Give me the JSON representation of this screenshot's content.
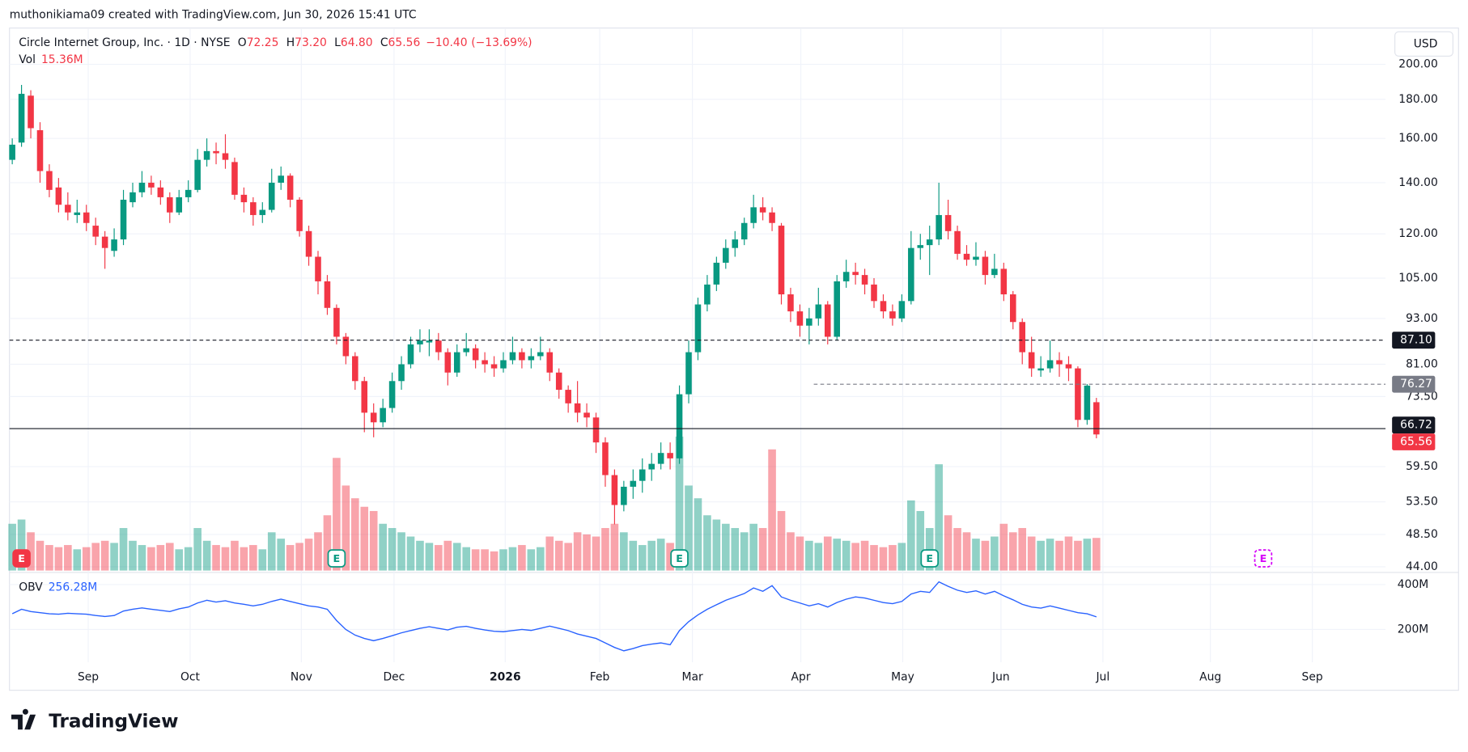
{
  "header": {
    "attribution": "muthonikiama09 created with TradingView.com, Jun 30, 2026 15:41 UTC"
  },
  "currency": "USD",
  "footer": {
    "brand": "TradingView"
  },
  "chart_data": {
    "type": "candlestick",
    "legend": {
      "symbol": "Circle Internet Group, Inc. · 1D · NYSE",
      "ohlc": [
        {
          "key": "O",
          "value": 72.25,
          "label": "72.25"
        },
        {
          "key": "H",
          "value": 73.2,
          "label": "73.20"
        },
        {
          "key": "L",
          "value": 64.8,
          "label": "64.80"
        },
        {
          "key": "C",
          "value": 65.56,
          "label": "65.56"
        }
      ],
      "change": {
        "value": -10.4,
        "label": "−10.40"
      },
      "change_pct": {
        "value": -13.69,
        "label": "(−13.69%)"
      }
    },
    "ohlc": [
      [
        150,
        160,
        148,
        157
      ],
      [
        158,
        188,
        156,
        183
      ],
      [
        182,
        185,
        160,
        165
      ],
      [
        164,
        168,
        140,
        145
      ],
      [
        145,
        148,
        134,
        137
      ],
      [
        138,
        142,
        128,
        131
      ],
      [
        131,
        136,
        125,
        128
      ],
      [
        127,
        133,
        124,
        128
      ],
      [
        128,
        131,
        121,
        124
      ],
      [
        123,
        126,
        116,
        119
      ],
      [
        119,
        121,
        108,
        115
      ],
      [
        114,
        122,
        112,
        118
      ],
      [
        118,
        137,
        116,
        133
      ],
      [
        132,
        140,
        130,
        136
      ],
      [
        136,
        145,
        134,
        140
      ],
      [
        140,
        143,
        135,
        138
      ],
      [
        138,
        141,
        131,
        134
      ],
      [
        134,
        136,
        124,
        128
      ],
      [
        128,
        137,
        127,
        134
      ],
      [
        134,
        141,
        132,
        137
      ],
      [
        137,
        155,
        136,
        150
      ],
      [
        150,
        160,
        147,
        154
      ],
      [
        154,
        158,
        148,
        153
      ],
      [
        153,
        162,
        146,
        150
      ],
      [
        149,
        151,
        133,
        135
      ],
      [
        135,
        138,
        128,
        132
      ],
      [
        132,
        134,
        123,
        127
      ],
      [
        127,
        132,
        124,
        129
      ],
      [
        129,
        146,
        128,
        140
      ],
      [
        140,
        147,
        137,
        143
      ],
      [
        143,
        144,
        130,
        133
      ],
      [
        133,
        134,
        119,
        121
      ],
      [
        121,
        123,
        109,
        112
      ],
      [
        112,
        114,
        100,
        104
      ],
      [
        104,
        106,
        94,
        96
      ],
      [
        96,
        97,
        86,
        88
      ],
      [
        88,
        89,
        81,
        83
      ],
      [
        83,
        84,
        75,
        77
      ],
      [
        77,
        78,
        66,
        70
      ],
      [
        70,
        72,
        65,
        68
      ],
      [
        68,
        73,
        67,
        71
      ],
      [
        71,
        79,
        70,
        77
      ],
      [
        77,
        83,
        75,
        81
      ],
      [
        81,
        88,
        80,
        86
      ],
      [
        86,
        90,
        84,
        87
      ],
      [
        86.5,
        90,
        83,
        87
      ],
      [
        87,
        89,
        82,
        84
      ],
      [
        84,
        85,
        76,
        79
      ],
      [
        79,
        86,
        78,
        84
      ],
      [
        84,
        89,
        83,
        85
      ],
      [
        85,
        86,
        80,
        82
      ],
      [
        82,
        84,
        79,
        81
      ],
      [
        81,
        83,
        78,
        80
      ],
      [
        80,
        84,
        79,
        82
      ],
      [
        82,
        88,
        81,
        84
      ],
      [
        84,
        85,
        80,
        82
      ],
      [
        82,
        85,
        80,
        83
      ],
      [
        83,
        88,
        82,
        84
      ],
      [
        84,
        85,
        77,
        79
      ],
      [
        79,
        80,
        73,
        75
      ],
      [
        75,
        76,
        70,
        72
      ],
      [
        72,
        77,
        68,
        70
      ],
      [
        70,
        72,
        67,
        69
      ],
      [
        69,
        70,
        62,
        64
      ],
      [
        64,
        65,
        56,
        58
      ],
      [
        58,
        59,
        50,
        53
      ],
      [
        53,
        57,
        52,
        56
      ],
      [
        56,
        59,
        54,
        57
      ],
      [
        57,
        61,
        55,
        59
      ],
      [
        59,
        62,
        57,
        60
      ],
      [
        60,
        64,
        59,
        62
      ],
      [
        62,
        64,
        59,
        61
      ],
      [
        61,
        76,
        60,
        74
      ],
      [
        74,
        87,
        72,
        84
      ],
      [
        84,
        99,
        82,
        97
      ],
      [
        97,
        106,
        95,
        103
      ],
      [
        103,
        112,
        101,
        110
      ],
      [
        110,
        118,
        108,
        115
      ],
      [
        115,
        121,
        112,
        118
      ],
      [
        118,
        126,
        116,
        124
      ],
      [
        124,
        135,
        122,
        130
      ],
      [
        130,
        134,
        125,
        128
      ],
      [
        128,
        130,
        121,
        124
      ],
      [
        123,
        124,
        97,
        100
      ],
      [
        100,
        102,
        92,
        95
      ],
      [
        95,
        97,
        88,
        91
      ],
      [
        91,
        96,
        86,
        93
      ],
      [
        93,
        102,
        91,
        97
      ],
      [
        97,
        98,
        86,
        88
      ],
      [
        88,
        106,
        87,
        104
      ],
      [
        104,
        111,
        102,
        107
      ],
      [
        107,
        110,
        103,
        106
      ],
      [
        106,
        108,
        100,
        103
      ],
      [
        103,
        105,
        96,
        98
      ],
      [
        98,
        100,
        93,
        95
      ],
      [
        95,
        97,
        91,
        93
      ],
      [
        93,
        100,
        92,
        98
      ],
      [
        98,
        121,
        97,
        115
      ],
      [
        115,
        120,
        111,
        116
      ],
      [
        116,
        123,
        106,
        118
      ],
      [
        118,
        140,
        116,
        127
      ],
      [
        127,
        133,
        118,
        121
      ],
      [
        121,
        123,
        111,
        113
      ],
      [
        113,
        116,
        109,
        111
      ],
      [
        111,
        117,
        109,
        112
      ],
      [
        112,
        114,
        103,
        106
      ],
      [
        106,
        113,
        105,
        108
      ],
      [
        108,
        110,
        98,
        100
      ],
      [
        100,
        101,
        90,
        92
      ],
      [
        92,
        93,
        81,
        84
      ],
      [
        84,
        88,
        78,
        80
      ],
      [
        79.5,
        83,
        78,
        80
      ],
      [
        80,
        87,
        79,
        82
      ],
      [
        82,
        84,
        78,
        81
      ],
      [
        81,
        83,
        77,
        80
      ],
      [
        80,
        80.5,
        67,
        68.5
      ],
      [
        68.5,
        76.3,
        67.5,
        75.96
      ],
      [
        72.25,
        73.2,
        64.8,
        65.56
      ]
    ],
    "up_color": "#089981",
    "down_color": "#f23645",
    "ylim": [
      43.5,
      220
    ],
    "log_scale": true,
    "yticks": [
      {
        "value": 200,
        "label": "200.00"
      },
      {
        "value": 180,
        "label": "180.00"
      },
      {
        "value": 160,
        "label": "160.00"
      },
      {
        "value": 140,
        "label": "140.00"
      },
      {
        "value": 120,
        "label": "120.00"
      },
      {
        "value": 105,
        "label": "105.00"
      },
      {
        "value": 93,
        "label": "93.00"
      },
      {
        "value": 81,
        "label": "81.00"
      },
      {
        "value": 73.5,
        "label": "73.50"
      },
      {
        "value": 59.5,
        "label": "59.50"
      },
      {
        "value": 53.5,
        "label": "53.50"
      },
      {
        "value": 48.5,
        "label": "48.50"
      },
      {
        "value": 44,
        "label": "44.00"
      }
    ],
    "xlim": [
      -0.3,
      148.2
    ],
    "xticks": [
      {
        "value": 8.2,
        "label": "Sep"
      },
      {
        "value": 19.2,
        "label": "Oct"
      },
      {
        "value": 31.2,
        "label": "Nov"
      },
      {
        "value": 41.2,
        "label": "Dec"
      },
      {
        "value": 53.2,
        "label": "2026",
        "emphasis": true
      },
      {
        "value": 63.4,
        "label": "Feb"
      },
      {
        "value": 73.4,
        "label": "Mar"
      },
      {
        "value": 85.1,
        "label": "Apr"
      },
      {
        "value": 96.1,
        "label": "May"
      },
      {
        "value": 106.7,
        "label": "Jun"
      },
      {
        "value": 117.7,
        "label": "Jul"
      },
      {
        "value": 129.3,
        "label": "Aug"
      },
      {
        "value": 140.3,
        "label": "Sep"
      }
    ],
    "grid": true,
    "price_lines": [
      {
        "value": 87.1,
        "label": "87.10",
        "style": "dashed",
        "color": "#131722"
      },
      {
        "value": 76.27,
        "label": "76.27",
        "style": "dashed",
        "color": "#787b86",
        "from": 86.5
      },
      {
        "value": 66.72,
        "label": "66.72",
        "style": "solid",
        "color": "#131722"
      },
      {
        "value": 65.56,
        "label": "65.56",
        "style": "none",
        "color": "#f23645"
      }
    ],
    "volume": {
      "name": "Vol",
      "ylim": [
        0,
        66
      ],
      "legend_value": {
        "value": 15.36,
        "label": "15.36M"
      },
      "values": [
        22,
        24,
        18,
        14,
        12,
        11,
        12,
        10,
        11,
        13,
        14,
        13,
        20,
        14,
        12,
        11,
        12,
        13,
        10,
        11,
        20,
        14,
        12,
        11,
        14,
        11,
        12,
        10,
        18,
        15,
        12,
        13,
        15,
        18,
        26,
        53,
        40,
        34,
        30,
        28,
        22,
        20,
        18,
        16,
        14,
        13,
        12,
        14,
        13,
        11,
        10,
        10,
        9,
        10,
        11,
        12,
        10,
        11,
        16,
        14,
        13,
        18,
        17,
        16,
        20,
        22,
        18,
        14,
        12,
        14,
        15,
        13,
        63,
        40,
        34,
        26,
        24,
        22,
        20,
        18,
        22,
        20,
        57,
        28,
        18,
        16,
        14,
        13,
        16,
        15,
        14,
        13,
        14,
        12,
        11,
        12,
        13,
        33,
        28,
        20,
        50,
        26,
        20,
        18,
        15,
        14,
        16,
        22,
        18,
        20,
        16,
        14,
        15,
        14,
        16,
        14,
        15,
        15.36
      ]
    },
    "obv": {
      "name": "OBV",
      "color": "#2962ff",
      "ylim": [
        66.7,
        441.7
      ],
      "yticks": [
        {
          "value": 400,
          "label": "400M"
        },
        {
          "value": 200,
          "label": "200M"
        }
      ],
      "legend_value": {
        "value": 256.28,
        "label": "256.28M"
      },
      "values": [
        270,
        290,
        280,
        275,
        270,
        268,
        272,
        270,
        268,
        262,
        258,
        262,
        282,
        290,
        296,
        290,
        285,
        280,
        292,
        300,
        318,
        330,
        322,
        328,
        318,
        312,
        305,
        312,
        325,
        335,
        325,
        315,
        305,
        300,
        290,
        240,
        200,
        175,
        160,
        150,
        160,
        172,
        185,
        195,
        205,
        212,
        205,
        198,
        210,
        214,
        205,
        198,
        192,
        190,
        195,
        200,
        196,
        205,
        215,
        205,
        195,
        180,
        170,
        160,
        140,
        120,
        105,
        115,
        128,
        135,
        140,
        132,
        195,
        235,
        265,
        290,
        310,
        330,
        345,
        360,
        385,
        370,
        395,
        345,
        330,
        318,
        305,
        315,
        300,
        320,
        335,
        345,
        340,
        330,
        320,
        315,
        325,
        358,
        370,
        365,
        412,
        392,
        375,
        365,
        372,
        358,
        370,
        350,
        332,
        312,
        300,
        295,
        305,
        295,
        285,
        275,
        270,
        256.28
      ]
    },
    "events": [
      {
        "label": "E",
        "x": 1,
        "color": "#f23645",
        "filled": true
      },
      {
        "label": "E",
        "x": 35,
        "color": "#089981"
      },
      {
        "label": "E",
        "x": 72,
        "color": "#089981"
      },
      {
        "label": "E",
        "x": 99,
        "color": "#089981"
      },
      {
        "label": "E",
        "x": 135,
        "color": "#d500f9",
        "future": true
      }
    ]
  }
}
